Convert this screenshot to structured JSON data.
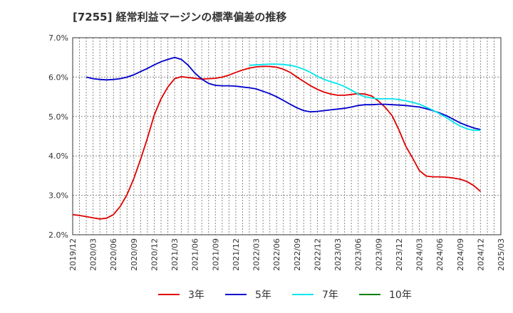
{
  "chart_data": {
    "type": "line",
    "title": "[7255]  経常利益マージンの標準偏差の推移",
    "grid": true,
    "legend_position": "bottom",
    "ylim": [
      2.0,
      7.0
    ],
    "y_ticks": [
      "2.0%",
      "3.0%",
      "4.0%",
      "5.0%",
      "6.0%",
      "7.0%"
    ],
    "x_range": [
      "2019-12",
      "2025-03"
    ],
    "x_ticks": [
      "2019/12",
      "2020/03",
      "2020/06",
      "2020/09",
      "2020/12",
      "2021/03",
      "2021/06",
      "2021/09",
      "2021/12",
      "2022/03",
      "2022/06",
      "2022/09",
      "2022/12",
      "2023/03",
      "2023/06",
      "2023/09",
      "2023/12",
      "2024/03",
      "2024/06",
      "2024/09",
      "2024/12",
      "2025/03"
    ],
    "series": [
      {
        "name": "3年",
        "color": "#e00000",
        "points": [
          [
            "2019-12",
            2.51
          ],
          [
            "2020-01",
            2.49
          ],
          [
            "2020-02",
            2.46
          ],
          [
            "2020-03",
            2.43
          ],
          [
            "2020-04",
            2.4
          ],
          [
            "2020-05",
            2.42
          ],
          [
            "2020-06",
            2.51
          ],
          [
            "2020-07",
            2.72
          ],
          [
            "2020-08",
            3.02
          ],
          [
            "2020-09",
            3.43
          ],
          [
            "2020-10",
            3.92
          ],
          [
            "2020-11",
            4.45
          ],
          [
            "2020-12",
            5.04
          ],
          [
            "2021-01",
            5.45
          ],
          [
            "2021-02",
            5.75
          ],
          [
            "2021-03",
            5.96
          ],
          [
            "2021-04",
            6.01
          ],
          [
            "2021-05",
            5.99
          ],
          [
            "2021-06",
            5.97
          ],
          [
            "2021-07",
            5.95
          ],
          [
            "2021-08",
            5.96
          ],
          [
            "2021-09",
            5.97
          ],
          [
            "2021-10",
            6.0
          ],
          [
            "2021-11",
            6.05
          ],
          [
            "2021-12",
            6.12
          ],
          [
            "2022-01",
            6.18
          ],
          [
            "2022-02",
            6.23
          ],
          [
            "2022-03",
            6.26
          ],
          [
            "2022-04",
            6.27
          ],
          [
            "2022-05",
            6.27
          ],
          [
            "2022-06",
            6.25
          ],
          [
            "2022-07",
            6.2
          ],
          [
            "2022-08",
            6.12
          ],
          [
            "2022-09",
            6.0
          ],
          [
            "2022-10",
            5.89
          ],
          [
            "2022-11",
            5.78
          ],
          [
            "2022-12",
            5.69
          ],
          [
            "2023-01",
            5.62
          ],
          [
            "2023-02",
            5.57
          ],
          [
            "2023-03",
            5.54
          ],
          [
            "2023-04",
            5.54
          ],
          [
            "2023-05",
            5.56
          ],
          [
            "2023-06",
            5.58
          ],
          [
            "2023-07",
            5.57
          ],
          [
            "2023-08",
            5.52
          ],
          [
            "2023-09",
            5.39
          ],
          [
            "2023-10",
            5.23
          ],
          [
            "2023-11",
            5.02
          ],
          [
            "2023-12",
            4.66
          ],
          [
            "2024-01",
            4.25
          ],
          [
            "2024-02",
            3.95
          ],
          [
            "2024-03",
            3.63
          ],
          [
            "2024-04",
            3.49
          ],
          [
            "2024-05",
            3.47
          ],
          [
            "2024-06",
            3.47
          ],
          [
            "2024-07",
            3.46
          ],
          [
            "2024-08",
            3.44
          ],
          [
            "2024-09",
            3.41
          ],
          [
            "2024-10",
            3.35
          ],
          [
            "2024-11",
            3.25
          ],
          [
            "2024-12",
            3.1
          ]
        ]
      },
      {
        "name": "5年",
        "color": "#0000cc",
        "points": [
          [
            "2020-02",
            6.0
          ],
          [
            "2020-03",
            5.96
          ],
          [
            "2020-04",
            5.94
          ],
          [
            "2020-05",
            5.93
          ],
          [
            "2020-06",
            5.94
          ],
          [
            "2020-07",
            5.96
          ],
          [
            "2020-08",
            6.0
          ],
          [
            "2020-09",
            6.06
          ],
          [
            "2020-10",
            6.14
          ],
          [
            "2020-11",
            6.22
          ],
          [
            "2020-12",
            6.31
          ],
          [
            "2021-01",
            6.39
          ],
          [
            "2021-02",
            6.45
          ],
          [
            "2021-03",
            6.5
          ],
          [
            "2021-04",
            6.45
          ],
          [
            "2021-05",
            6.3
          ],
          [
            "2021-06",
            6.1
          ],
          [
            "2021-07",
            5.95
          ],
          [
            "2021-08",
            5.84
          ],
          [
            "2021-09",
            5.79
          ],
          [
            "2021-10",
            5.78
          ],
          [
            "2021-11",
            5.78
          ],
          [
            "2021-12",
            5.77
          ],
          [
            "2022-01",
            5.75
          ],
          [
            "2022-02",
            5.73
          ],
          [
            "2022-03",
            5.7
          ],
          [
            "2022-04",
            5.64
          ],
          [
            "2022-05",
            5.58
          ],
          [
            "2022-06",
            5.5
          ],
          [
            "2022-07",
            5.41
          ],
          [
            "2022-08",
            5.31
          ],
          [
            "2022-09",
            5.22
          ],
          [
            "2022-10",
            5.15
          ],
          [
            "2022-11",
            5.12
          ],
          [
            "2022-12",
            5.13
          ],
          [
            "2023-01",
            5.15
          ],
          [
            "2023-02",
            5.17
          ],
          [
            "2023-03",
            5.19
          ],
          [
            "2023-04",
            5.21
          ],
          [
            "2023-05",
            5.24
          ],
          [
            "2023-06",
            5.28
          ],
          [
            "2023-07",
            5.3
          ],
          [
            "2023-08",
            5.3
          ],
          [
            "2023-09",
            5.31
          ],
          [
            "2023-10",
            5.31
          ],
          [
            "2023-11",
            5.3
          ],
          [
            "2023-12",
            5.29
          ],
          [
            "2024-01",
            5.28
          ],
          [
            "2024-02",
            5.26
          ],
          [
            "2024-03",
            5.24
          ],
          [
            "2024-04",
            5.2
          ],
          [
            "2024-05",
            5.15
          ],
          [
            "2024-06",
            5.09
          ],
          [
            "2024-07",
            5.02
          ],
          [
            "2024-08",
            4.93
          ],
          [
            "2024-09",
            4.84
          ],
          [
            "2024-10",
            4.77
          ],
          [
            "2024-11",
            4.71
          ],
          [
            "2024-12",
            4.67
          ]
        ]
      },
      {
        "name": "7年",
        "color": "#00e5ee",
        "points": [
          [
            "2022-02",
            6.3
          ],
          [
            "2022-03",
            6.31
          ],
          [
            "2022-04",
            6.32
          ],
          [
            "2022-05",
            6.33
          ],
          [
            "2022-06",
            6.33
          ],
          [
            "2022-07",
            6.32
          ],
          [
            "2022-08",
            6.3
          ],
          [
            "2022-09",
            6.26
          ],
          [
            "2022-10",
            6.2
          ],
          [
            "2022-11",
            6.12
          ],
          [
            "2022-12",
            6.02
          ],
          [
            "2023-01",
            5.94
          ],
          [
            "2023-02",
            5.88
          ],
          [
            "2023-03",
            5.83
          ],
          [
            "2023-04",
            5.76
          ],
          [
            "2023-05",
            5.67
          ],
          [
            "2023-06",
            5.57
          ],
          [
            "2023-07",
            5.5
          ],
          [
            "2023-08",
            5.47
          ],
          [
            "2023-09",
            5.45
          ],
          [
            "2023-10",
            5.45
          ],
          [
            "2023-11",
            5.45
          ],
          [
            "2023-12",
            5.43
          ],
          [
            "2024-01",
            5.4
          ],
          [
            "2024-02",
            5.36
          ],
          [
            "2024-03",
            5.31
          ],
          [
            "2024-04",
            5.24
          ],
          [
            "2024-05",
            5.16
          ],
          [
            "2024-06",
            5.07
          ],
          [
            "2024-07",
            4.97
          ],
          [
            "2024-08",
            4.86
          ],
          [
            "2024-09",
            4.76
          ],
          [
            "2024-10",
            4.69
          ],
          [
            "2024-11",
            4.65
          ],
          [
            "2024-12",
            4.65
          ]
        ]
      },
      {
        "name": "10年",
        "color": "#008000",
        "points": []
      }
    ]
  }
}
